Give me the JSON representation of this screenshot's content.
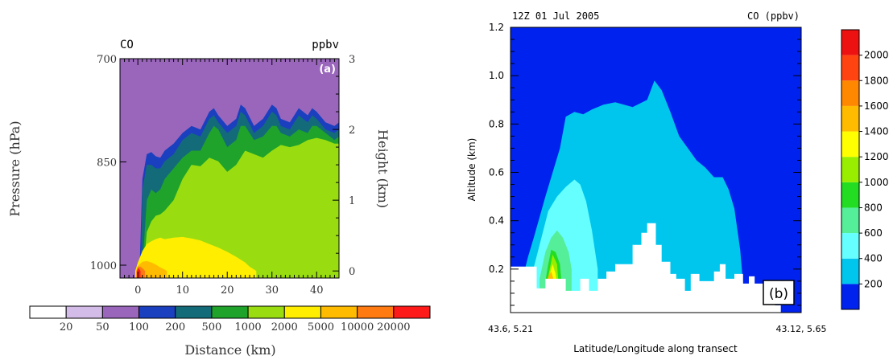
{
  "chart_data": [
    {
      "type": "contour",
      "panel_label": "(a)",
      "top_left_label": "CO",
      "top_right_label": "ppbv",
      "xlabel": "Distance (km)",
      "ylabel_left": "Pressure (hPa)",
      "ylabel_right": "Height (km)",
      "xlim": [
        -4,
        45
      ],
      "x_ticks": [
        0,
        10,
        20,
        30,
        40
      ],
      "left_ticks": [
        {
          "value": 700,
          "label": "700"
        },
        {
          "value": 850,
          "label": "850"
        },
        {
          "value": 1000,
          "label": "1000"
        }
      ],
      "right_ticks": [
        0,
        1,
        2,
        3
      ],
      "ylim_height_km": [
        -0.1,
        3.0
      ],
      "background_color": "#9966bb",
      "colorbar": {
        "labels": [
          "20",
          "50",
          "100",
          "200",
          "500",
          "1000",
          "2000",
          "5000",
          "10000",
          "20000"
        ],
        "colors": [
          "#ffffff",
          "#d4bce8",
          "#9966bb",
          "#1a3fbf",
          "#136b7a",
          "#1fa32a",
          "#99dd11",
          "#ffee00",
          "#ffbb00",
          "#ff7a10",
          "#ff1a1a"
        ]
      },
      "layers": [
        {
          "level": "100",
          "color": "#1a3fbf",
          "x": [
            0.4,
            1,
            2,
            3,
            4,
            5,
            6,
            8,
            10,
            12,
            14,
            16,
            17,
            18,
            20,
            22,
            23,
            24,
            26,
            28,
            30,
            31,
            32,
            34,
            36,
            38,
            39,
            40,
            42,
            44,
            45
          ],
          "top_km": [
            0.05,
            1.3,
            1.65,
            1.68,
            1.62,
            1.6,
            1.7,
            1.8,
            1.95,
            2.05,
            2.0,
            2.25,
            2.3,
            2.2,
            2.05,
            2.15,
            2.35,
            2.3,
            2.05,
            2.15,
            2.35,
            2.3,
            2.15,
            2.1,
            2.3,
            2.2,
            2.3,
            2.25,
            2.1,
            2.05,
            2.1
          ]
        },
        {
          "level": "200",
          "color": "#136b7a",
          "x": [
            0.7,
            1,
            2,
            3,
            4,
            5,
            6,
            8,
            10,
            12,
            14,
            16,
            17,
            18,
            20,
            22,
            23,
            24,
            26,
            28,
            30,
            31,
            32,
            34,
            36,
            38,
            39,
            40,
            42,
            44,
            45
          ],
          "top_km": [
            0.05,
            1.15,
            1.5,
            1.5,
            1.45,
            1.45,
            1.55,
            1.65,
            1.85,
            1.95,
            1.9,
            2.15,
            2.2,
            2.1,
            1.95,
            2.05,
            2.25,
            2.2,
            1.95,
            2.05,
            2.25,
            2.2,
            2.05,
            2.0,
            2.2,
            2.1,
            2.2,
            2.15,
            2.0,
            1.95,
            2.0
          ]
        },
        {
          "level": "500",
          "color": "#1fa32a",
          "x": [
            1.0,
            2,
            3,
            4,
            5,
            6,
            8,
            10,
            12,
            14,
            16,
            17,
            18,
            20,
            22,
            23,
            24,
            26,
            28,
            30,
            31,
            32,
            34,
            36,
            38,
            39,
            40,
            42,
            44,
            45
          ],
          "top_km": [
            0.05,
            1.0,
            1.15,
            1.1,
            1.15,
            1.3,
            1.45,
            1.6,
            1.7,
            1.7,
            1.95,
            2.05,
            2.0,
            1.75,
            1.85,
            2.05,
            2.05,
            1.85,
            1.9,
            2.05,
            2.05,
            1.95,
            1.9,
            2.0,
            1.95,
            2.05,
            2.05,
            1.95,
            1.85,
            1.9
          ]
        },
        {
          "level": "1000",
          "color": "#99dd11",
          "x": [
            1.3,
            2,
            3,
            4,
            5,
            6,
            8,
            10,
            12,
            14,
            16,
            18,
            20,
            22,
            24,
            26,
            28,
            30,
            32,
            34,
            36,
            38,
            40,
            42,
            44,
            45
          ],
          "top_km": [
            0.05,
            0.55,
            0.7,
            0.78,
            0.8,
            0.85,
            1.0,
            1.3,
            1.5,
            1.48,
            1.6,
            1.55,
            1.4,
            1.5,
            1.7,
            1.65,
            1.6,
            1.7,
            1.78,
            1.75,
            1.78,
            1.85,
            1.88,
            1.85,
            1.8,
            1.8
          ]
        },
        {
          "level": "2000",
          "color": "#ffee00",
          "x": [
            -0.6,
            0,
            1,
            2,
            3,
            4,
            5,
            6,
            8,
            10,
            12,
            14,
            16,
            18,
            20,
            22,
            24,
            25,
            26,
            26.5
          ],
          "top_km": [
            0.0,
            0.12,
            0.28,
            0.38,
            0.42,
            0.45,
            0.47,
            0.45,
            0.47,
            0.48,
            0.46,
            0.43,
            0.38,
            0.33,
            0.27,
            0.2,
            0.12,
            0.06,
            0.02,
            0.0
          ]
        },
        {
          "level": "5000",
          "color": "#ffbb00",
          "x": [
            -0.4,
            0,
            1,
            2,
            3,
            4,
            5,
            6,
            6.5
          ],
          "top_km": [
            0.0,
            0.07,
            0.13,
            0.14,
            0.12,
            0.09,
            0.05,
            0.02,
            0.0
          ]
        },
        {
          "level": "10000",
          "color": "#ff7a10",
          "x": [
            -0.3,
            0,
            0.6,
            1.2,
            1.6
          ],
          "top_km": [
            0.0,
            0.06,
            0.06,
            0.03,
            0.0
          ]
        },
        {
          "level": "20000",
          "color": "#ff1a1a",
          "x": [
            -0.2,
            0,
            0.3,
            0.6
          ],
          "top_km": [
            0.0,
            0.04,
            0.03,
            0.0
          ]
        }
      ]
    },
    {
      "type": "contour",
      "panel_label": "(b)",
      "title_left": "12Z 01 Jul 2005",
      "title_right": "CO (ppbv)",
      "xlabel": "Latitude/Longitude along transect",
      "x_tick_labels": [
        "43.6, 5.21",
        "43.12, 5.65"
      ],
      "xlim": [
        0,
        1
      ],
      "ylabel": "Altitude (km)",
      "ylim": [
        0.02,
        1.2
      ],
      "y_ticks": [
        0.2,
        0.4,
        0.6,
        0.8,
        1.0,
        1.2
      ],
      "y_tick_labels": [
        "0.2",
        "0.4",
        "0.6",
        "0.8",
        "1.0",
        "1.2"
      ],
      "background_color": "#0022ee",
      "colorbar": {
        "labels": [
          "200",
          "400",
          "600",
          "800",
          "1000",
          "1200",
          "1400",
          "1600",
          "1800",
          "2000"
        ],
        "colors": [
          "#0022ee",
          "#00c6ee",
          "#66ffff",
          "#55ee99",
          "#22dd22",
          "#99ee00",
          "#ffff00",
          "#ffbb00",
          "#ff8800",
          "#ff4411",
          "#ee1111"
        ]
      },
      "layers": [
        {
          "level": "200",
          "color": "#00c6ee",
          "x": [
            0.05,
            0.06,
            0.08,
            0.12,
            0.17,
            0.19,
            0.22,
            0.25,
            0.28,
            0.32,
            0.36,
            0.42,
            0.47,
            0.495,
            0.52,
            0.55,
            0.58,
            0.61,
            0.64,
            0.67,
            0.7,
            0.73,
            0.75,
            0.77,
            0.79,
            0.8
          ],
          "top_km": [
            0.2,
            0.25,
            0.33,
            0.5,
            0.7,
            0.83,
            0.85,
            0.84,
            0.86,
            0.88,
            0.89,
            0.87,
            0.9,
            0.98,
            0.94,
            0.85,
            0.75,
            0.7,
            0.65,
            0.62,
            0.58,
            0.58,
            0.53,
            0.45,
            0.28,
            0.14
          ]
        },
        {
          "level": "400",
          "color": "#66ffff",
          "x": [
            0.07,
            0.1,
            0.13,
            0.16,
            0.19,
            0.22,
            0.24,
            0.26,
            0.28,
            0.29,
            0.3,
            0.3
          ],
          "top_km": [
            0.16,
            0.3,
            0.44,
            0.5,
            0.54,
            0.57,
            0.55,
            0.48,
            0.36,
            0.28,
            0.2,
            0.16
          ]
        },
        {
          "level": "600",
          "color": "#55ee99",
          "x": [
            0.1,
            0.12,
            0.14,
            0.16,
            0.18,
            0.2,
            0.21,
            0.21
          ],
          "top_km": [
            0.16,
            0.27,
            0.33,
            0.36,
            0.33,
            0.27,
            0.2,
            0.16
          ]
        },
        {
          "level": "1000",
          "color": "#22dd22",
          "x": [
            0.12,
            0.13,
            0.14,
            0.155,
            0.17,
            0.175
          ],
          "top_km": [
            0.15,
            0.22,
            0.28,
            0.27,
            0.22,
            0.15
          ]
        },
        {
          "level": "1200",
          "color": "#99ee00",
          "x": [
            0.125,
            0.135,
            0.145,
            0.16,
            0.165
          ],
          "top_km": [
            0.14,
            0.2,
            0.26,
            0.22,
            0.14
          ]
        },
        {
          "level": "1400",
          "color": "#ffff00",
          "x": [
            0.125,
            0.135,
            0.145,
            0.155,
            0.16
          ],
          "top_km": [
            0.12,
            0.18,
            0.22,
            0.18,
            0.12
          ]
        },
        {
          "level": "1600",
          "color": "#ffbb00",
          "x": [
            0.125,
            0.13,
            0.14,
            0.15,
            0.155
          ],
          "top_km": [
            0.12,
            0.17,
            0.19,
            0.15,
            0.12
          ]
        },
        {
          "level": "1800",
          "color": "#ff8800",
          "x": [
            0.125,
            0.13,
            0.135,
            0.143,
            0.148
          ],
          "top_km": [
            0.12,
            0.15,
            0.16,
            0.13,
            0.12
          ]
        },
        {
          "level": "2000",
          "color": "#ff4411",
          "x": [
            0.125,
            0.13,
            0.134,
            0.138
          ],
          "top_km": [
            0.12,
            0.14,
            0.13,
            0.12
          ]
        }
      ],
      "terrain": {
        "color": "#ffffff",
        "x": [
          0.0,
          0.09,
          0.09,
          0.12,
          0.12,
          0.19,
          0.19,
          0.24,
          0.24,
          0.27,
          0.27,
          0.3,
          0.3,
          0.33,
          0.33,
          0.36,
          0.36,
          0.42,
          0.42,
          0.45,
          0.45,
          0.47,
          0.47,
          0.5,
          0.5,
          0.52,
          0.52,
          0.55,
          0.55,
          0.57,
          0.57,
          0.6,
          0.6,
          0.62,
          0.62,
          0.65,
          0.65,
          0.7,
          0.7,
          0.72,
          0.72,
          0.74,
          0.74,
          0.77,
          0.77,
          0.8,
          0.8,
          0.82,
          0.82,
          0.84,
          0.84,
          0.87,
          0.87,
          0.89,
          0.89,
          0.91,
          0.91,
          0.93,
          0.93,
          1.0
        ],
        "top_km": [
          0.21,
          0.21,
          0.12,
          0.12,
          0.16,
          0.16,
          0.11,
          0.11,
          0.16,
          0.16,
          0.11,
          0.11,
          0.16,
          0.16,
          0.19,
          0.19,
          0.22,
          0.22,
          0.3,
          0.3,
          0.35,
          0.35,
          0.39,
          0.39,
          0.3,
          0.3,
          0.23,
          0.23,
          0.18,
          0.18,
          0.16,
          0.16,
          0.11,
          0.11,
          0.18,
          0.18,
          0.15,
          0.15,
          0.19,
          0.19,
          0.22,
          0.22,
          0.16,
          0.16,
          0.18,
          0.18,
          0.14,
          0.14,
          0.17,
          0.17,
          0.14,
          0.14,
          0.12,
          0.12,
          0.09,
          0.09,
          0.05,
          0.05,
          0.02,
          0.02
        ]
      }
    }
  ]
}
